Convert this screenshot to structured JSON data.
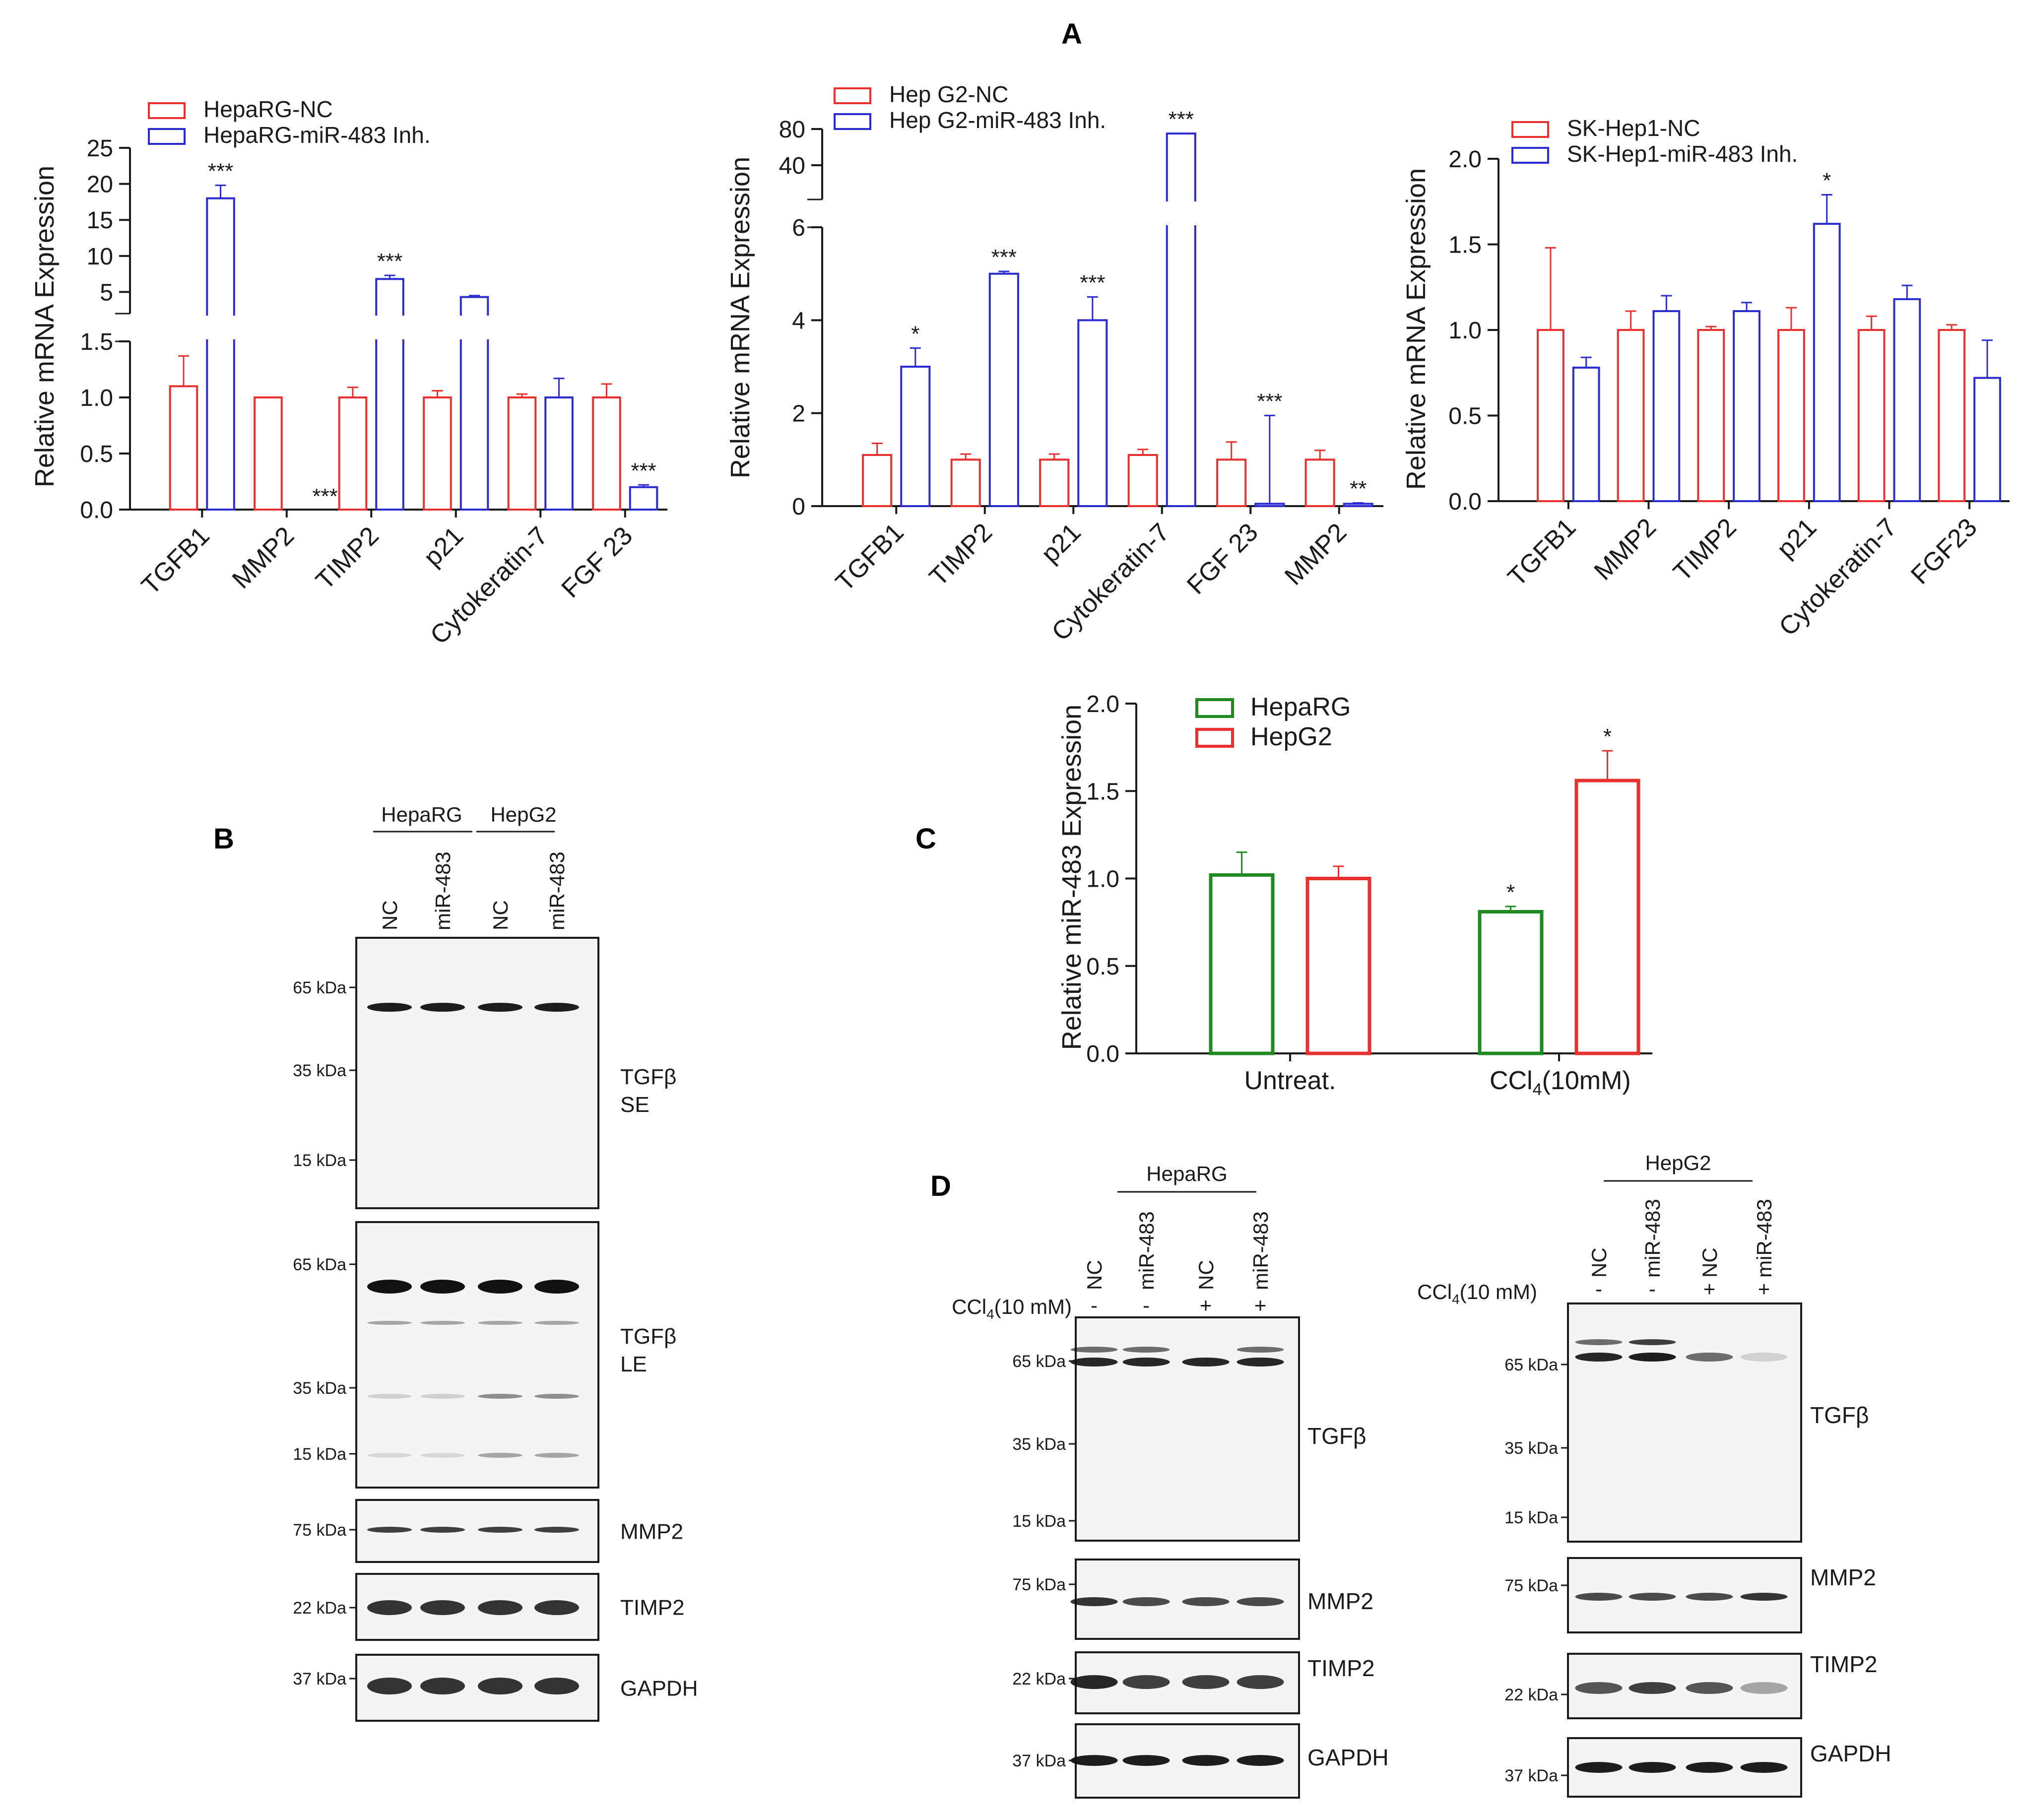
{
  "panels": {
    "A": {
      "letter": "A",
      "charts": [
        {
          "type": "bar",
          "ylabel": "Relative mRNA Expression",
          "broken_axis": true,
          "lower_ticks": [
            "0.0",
            "0.5",
            "1.0",
            "1.5"
          ],
          "upper_ticks": [
            "5",
            "10",
            "15",
            "20",
            "25"
          ],
          "categories": [
            "TGFB1",
            "MMP2",
            "TIMP2",
            "p21",
            "Cytokeratin-7",
            "FGF 23"
          ],
          "series": [
            {
              "name": "HepaRG-NC",
              "color": "#e8312f",
              "values": [
                1.1,
                1.0,
                1.0,
                1.0,
                1.0,
                1.0
              ],
              "errors": [
                0.27,
                0,
                0.09,
                0.06,
                0.03,
                0.12
              ]
            },
            {
              "name": "HepaRG-miR-483 Inh.",
              "color": "#2b2bd0",
              "values": [
                18.0,
                0.0,
                6.8,
                4.3,
                1.0,
                0.2
              ],
              "errors": [
                1.8,
                0,
                0.5,
                0.2,
                0.17,
                0.02
              ]
            }
          ],
          "significance": [
            "***",
            "***",
            "***",
            "",
            "",
            "***"
          ]
        },
        {
          "type": "bar",
          "ylabel": "Relative mRNA Expression",
          "broken_axis": true,
          "lower_ticks": [
            "0",
            "2",
            "4",
            "6"
          ],
          "upper_ticks": [
            "40",
            "80"
          ],
          "categories": [
            "TGFB1",
            "TIMP2",
            "p21",
            "Cytokeratin-7",
            "FGF 23",
            "MMP2"
          ],
          "series": [
            {
              "name": "Hep G2-NC",
              "color": "#e8312f",
              "values": [
                1.1,
                1.0,
                1.0,
                1.1,
                1.0,
                1.0
              ],
              "errors": [
                0.25,
                0.12,
                0.12,
                0.12,
                0.38,
                0.2
              ]
            },
            {
              "name": "Hep G2-miR-483 Inh.",
              "color": "#2b2bd0",
              "values": [
                3.0,
                5.0,
                4.0,
                75,
                0.05,
                0.05
              ],
              "errors": [
                0.4,
                0.05,
                0.5,
                0,
                1.9,
                0.02
              ]
            }
          ],
          "significance": [
            "*",
            "***",
            "***",
            "***",
            "***",
            "**"
          ]
        },
        {
          "type": "bar",
          "ylabel": "Relative mRNA Expression",
          "ticks": [
            "0.0",
            "0.5",
            "1.0",
            "1.5",
            "2.0"
          ],
          "ylim": [
            0,
            2.0
          ],
          "categories": [
            "TGFB1",
            "MMP2",
            "TIMP2",
            "p21",
            "Cytokeratin-7",
            "FGF23"
          ],
          "series": [
            {
              "name": "SK-Hep1-NC",
              "color": "#e8312f",
              "values": [
                1.0,
                1.0,
                1.0,
                1.0,
                1.0,
                1.0
              ],
              "errors": [
                0.48,
                0.11,
                0.02,
                0.13,
                0.08,
                0.03
              ]
            },
            {
              "name": "SK-Hep1-miR-483 Inh.",
              "color": "#2b2bd0",
              "values": [
                0.78,
                1.11,
                1.11,
                1.62,
                1.18,
                0.72
              ],
              "errors": [
                0.06,
                0.09,
                0.05,
                0.17,
                0.08,
                0.22
              ]
            }
          ],
          "significance": [
            "",
            "",
            "",
            "*",
            "",
            ""
          ]
        }
      ]
    },
    "B": {
      "letter": "B",
      "groups": [
        "HepaRG",
        "HepG2"
      ],
      "lanes": [
        "NC",
        "miR-483",
        "NC",
        "miR-483"
      ],
      "blots": [
        {
          "label": "TGFβ\nSE",
          "markers": [
            "65 kDa",
            "35 kDa",
            "15 kDa"
          ]
        },
        {
          "label": "TGFβ\nLE",
          "markers": [
            "65 kDa",
            "35 kDa",
            "15 kDa"
          ]
        },
        {
          "label": "MMP2",
          "markers": [
            "75 kDa"
          ]
        },
        {
          "label": "TIMP2",
          "markers": [
            "22 kDa"
          ]
        },
        {
          "label": "GAPDH",
          "markers": [
            "37 kDa"
          ]
        }
      ]
    },
    "C": {
      "letter": "C",
      "chart_data": {
        "type": "bar",
        "ylabel": "Relative miR-483 Expression",
        "ticks": [
          "0.0",
          "0.5",
          "1.0",
          "1.5",
          "2.0"
        ],
        "ylim": [
          0,
          2.0
        ],
        "categories": [
          "Untreat.",
          "CCl4(10mM)"
        ],
        "series": [
          {
            "name": "HepaRG",
            "color": "#1f8a1f",
            "values": [
              1.02,
              0.81
            ],
            "errors": [
              0.13,
              0.03
            ]
          },
          {
            "name": "HepG2",
            "color": "#e8312f",
            "values": [
              1.0,
              1.56
            ],
            "errors": [
              0.07,
              0.17
            ]
          }
        ],
        "significance": [
          [
            "",
            ""
          ],
          [
            "*",
            "*"
          ]
        ]
      }
    },
    "D": {
      "letter": "D",
      "treatment_label": "CCl4(10 mM)",
      "left": {
        "group": "HepaRG",
        "lanes": [
          "NC",
          "miR-483",
          "NC",
          "miR-483"
        ],
        "treat": [
          "-",
          "-",
          "+",
          "+"
        ],
        "blots": [
          {
            "label": "TGFβ",
            "markers": [
              "65 kDa",
              "35 kDa",
              "15 kDa"
            ]
          },
          {
            "label": "MMP2",
            "markers": [
              "75 kDa"
            ]
          },
          {
            "label": "TIMP2",
            "markers": [
              "22 kDa"
            ]
          },
          {
            "label": "GAPDH",
            "markers": [
              "37 kDa"
            ]
          }
        ]
      },
      "right": {
        "group": "HepG2",
        "lanes": [
          "NC",
          "miR-483",
          "NC",
          "miR-483"
        ],
        "treat": [
          "-",
          "-",
          "+",
          "+"
        ],
        "blots": [
          {
            "label": "TGFβ",
            "markers": [
              "65 kDa",
              "35 kDa",
              "15 kDa"
            ]
          },
          {
            "label": "MMP2",
            "markers": [
              "75 kDa"
            ]
          },
          {
            "label": "TIMP2",
            "markers": [
              "22 kDa"
            ]
          },
          {
            "label": "GAPDH",
            "markers": [
              "37 kDa"
            ]
          }
        ]
      }
    }
  }
}
